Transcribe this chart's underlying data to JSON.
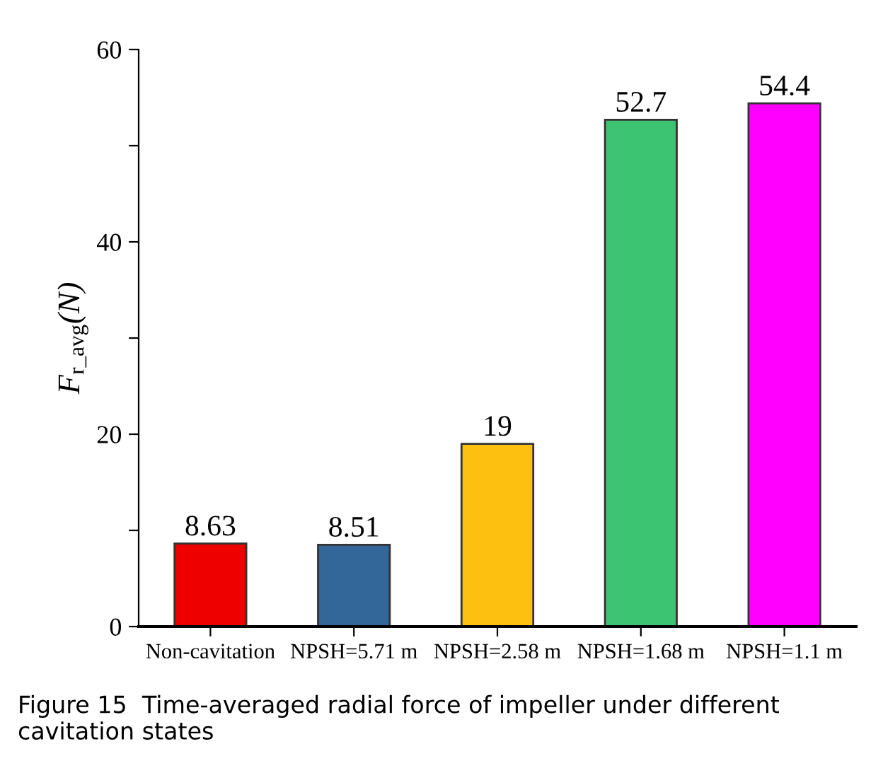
{
  "chart_data": {
    "type": "bar",
    "ylabel": "F$_{r_avg}$(N)",
    "categories": [
      "Non-cavitation",
      "NPSH=5.71 m",
      "NPSH=2.58 m",
      "NPSH=1.68 m",
      "NPSH=1.1 m"
    ],
    "values": [
      8.63,
      8.51,
      19,
      52.7,
      54.4
    ],
    "colors": [
      "#ee0000",
      "#336699",
      "#fdc010",
      "#3cc472",
      "#ff00ff"
    ],
    "data_labels": true,
    "ylim": [
      0,
      60
    ],
    "yticks": [
      0,
      {
        "value": 10,
        "label": null
      },
      20,
      {
        "value": 30,
        "label": null
      },
      40,
      {
        "value": 50,
        "label": null
      },
      60
    ],
    "grid": false,
    "legend": false,
    "annotations": [
      "Figure 15  Time-averaged radial force of impeller under different cavitation states"
    ]
  }
}
